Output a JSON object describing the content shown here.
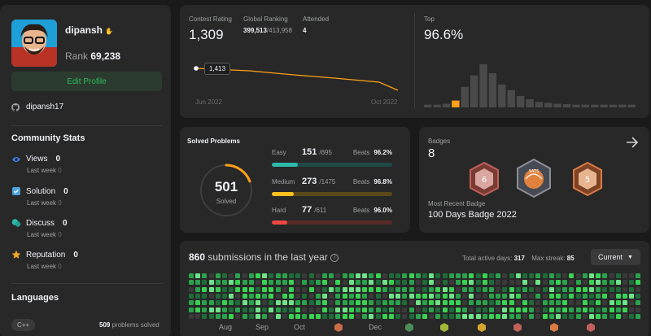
{
  "profile": {
    "username": "dipansh",
    "rank_label": "Rank",
    "rank_value": "69,238",
    "edit_label": "Edit Profile",
    "github": "dipansh17",
    "community_title": "Community Stats",
    "stats": [
      {
        "label": "Views",
        "value": "0",
        "sub_label": "Last week",
        "sub_value": "0",
        "icon": "eye-icon",
        "color": "#3b82f6"
      },
      {
        "label": "Solution",
        "value": "0",
        "sub_label": "Last week",
        "sub_value": "0",
        "icon": "check-icon",
        "color": "#4aa3df"
      },
      {
        "label": "Discuss",
        "value": "0",
        "sub_label": "Last week",
        "sub_value": "0",
        "icon": "discuss-icon",
        "color": "#2cbbad"
      },
      {
        "label": "Reputation",
        "value": "0",
        "sub_label": "Last week",
        "sub_value": "0",
        "icon": "star-icon",
        "color": "#f5a623"
      }
    ],
    "languages_title": "Languages",
    "language": {
      "name": "C++",
      "count": "509",
      "suffix": "problems solved"
    }
  },
  "contest": {
    "rating_label": "Contest Rating",
    "rating_value": "1,309",
    "global_label": "Global Ranking",
    "global_value": "399,513",
    "global_total": "/413,958",
    "attended_label": "Attended",
    "attended_value": "4",
    "tooltip": "1,413",
    "x_start": "Jun 2022",
    "x_end": "Oct 2022",
    "top_label": "Top",
    "top_value": "96.6%",
    "histogram": [
      0.06,
      0.06,
      0.08,
      0.15,
      0.45,
      0.7,
      0.95,
      0.75,
      0.5,
      0.38,
      0.25,
      0.18,
      0.12,
      0.1,
      0.08,
      0.07,
      0.06,
      0.06,
      0.06,
      0.06,
      0.06,
      0.06,
      0.06
    ],
    "highlight_index": 3
  },
  "solved": {
    "title": "Solved Problems",
    "total": "501",
    "total_label": "Solved",
    "rows": [
      {
        "name": "Easy",
        "count": "151",
        "total": "/695",
        "beats_label": "Beats",
        "beats": "96.2%",
        "fraction": 0.217,
        "color": "#2cbbad",
        "track": "#1f4a45"
      },
      {
        "name": "Medium",
        "count": "273",
        "total": "/1475",
        "beats_label": "Beats",
        "beats": "96.8%",
        "fraction": 0.185,
        "color": "#ffc01e",
        "track": "#5a4a18"
      },
      {
        "name": "Hard",
        "count": "77",
        "total": "/611",
        "beats_label": "Beats",
        "beats": "96.0%",
        "fraction": 0.126,
        "color": "#ef4743",
        "track": "#5a2a28"
      }
    ]
  },
  "badges": {
    "title": "Badges",
    "count": "8",
    "recent_label": "Most Recent Badge",
    "recent_name": "100 Days Badge 2022",
    "badge_texts": [
      "6",
      "SATS",
      "5"
    ]
  },
  "submissions": {
    "count": "860",
    "label": "submissions in the last year",
    "active_label": "Total active days:",
    "active_value": "317",
    "streak_label": "Max streak:",
    "streak_value": "85",
    "current_label": "Current",
    "months": [
      "Aug",
      "Sep",
      "Oct",
      "Dec"
    ]
  }
}
